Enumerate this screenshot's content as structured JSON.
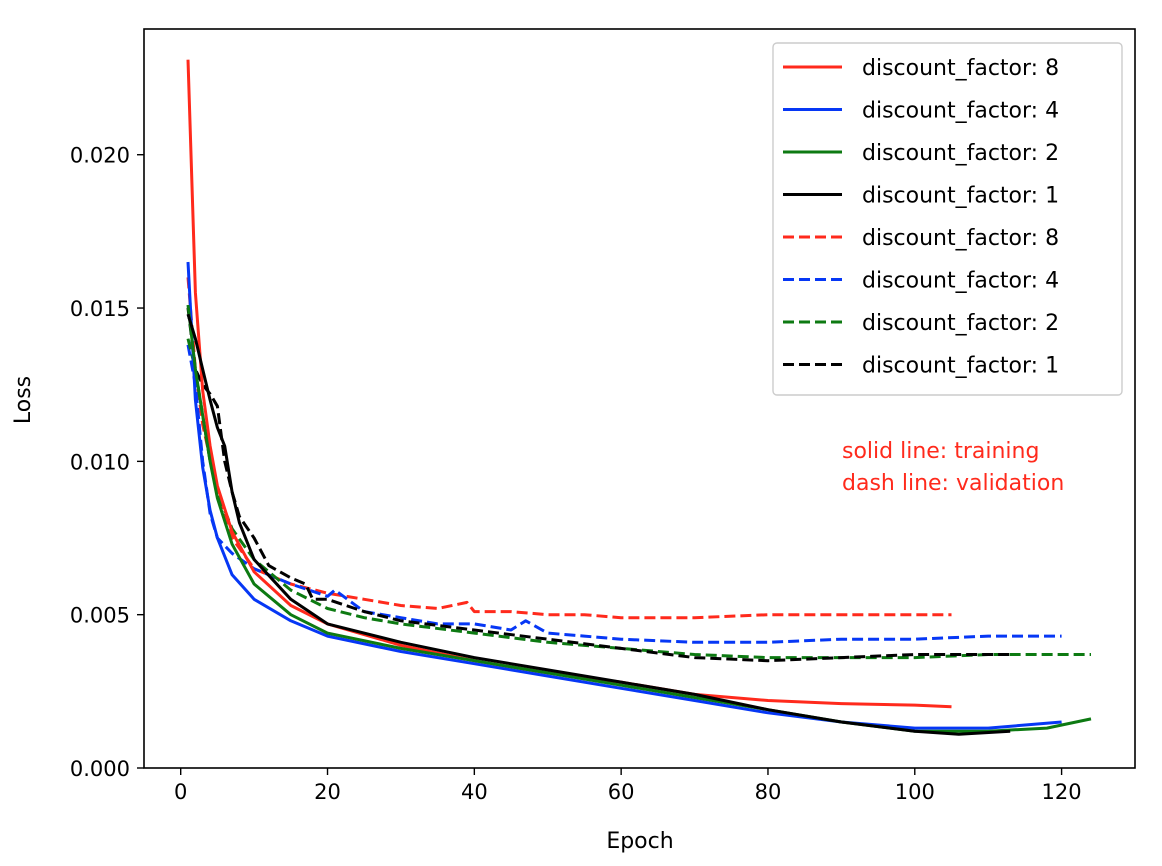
{
  "chart_data": {
    "type": "line",
    "title": "",
    "xlabel": "Epoch",
    "ylabel": "Loss",
    "xlim": [
      -5,
      130
    ],
    "ylim": [
      0,
      0.0241
    ],
    "xticks": [
      0,
      20,
      40,
      60,
      80,
      100,
      120
    ],
    "xtick_labels": [
      "0",
      "20",
      "40",
      "60",
      "80",
      "100",
      "120"
    ],
    "yticks": [
      0,
      0.005,
      0.01,
      0.015,
      0.02
    ],
    "ytick_labels": [
      "0.000",
      "0.005",
      "0.010",
      "0.015",
      "0.020"
    ],
    "grid": false,
    "legend_position": "top-right",
    "annotations": [
      {
        "text": "solid line: training",
        "color": "#ff2a1c"
      },
      {
        "text": "dash line: validation",
        "color": "#ff2a1c"
      }
    ],
    "series": [
      {
        "name": "discount_factor: 8",
        "color": "#ff2a1c",
        "style": "solid",
        "points": [
          [
            1,
            0.0231
          ],
          [
            2,
            0.0155
          ],
          [
            3,
            0.0123
          ],
          [
            4,
            0.0105
          ],
          [
            5,
            0.0092
          ],
          [
            7,
            0.0077
          ],
          [
            10,
            0.0064
          ],
          [
            15,
            0.0053
          ],
          [
            20,
            0.0047
          ],
          [
            30,
            0.004
          ],
          [
            40,
            0.0035
          ],
          [
            50,
            0.0031
          ],
          [
            60,
            0.0028
          ],
          [
            70,
            0.0024
          ],
          [
            80,
            0.0022
          ],
          [
            90,
            0.0021
          ],
          [
            100,
            0.00205
          ],
          [
            105,
            0.002
          ]
        ]
      },
      {
        "name": "discount_factor: 4",
        "color": "#0637f5",
        "style": "solid",
        "points": [
          [
            1,
            0.0165
          ],
          [
            2,
            0.012
          ],
          [
            3,
            0.0098
          ],
          [
            4,
            0.0084
          ],
          [
            5,
            0.0075
          ],
          [
            7,
            0.0063
          ],
          [
            10,
            0.0055
          ],
          [
            15,
            0.0048
          ],
          [
            20,
            0.0043
          ],
          [
            30,
            0.0038
          ],
          [
            40,
            0.0034
          ],
          [
            50,
            0.003
          ],
          [
            60,
            0.0026
          ],
          [
            70,
            0.0022
          ],
          [
            80,
            0.0018
          ],
          [
            90,
            0.0015
          ],
          [
            100,
            0.0013
          ],
          [
            110,
            0.0013
          ],
          [
            120,
            0.0015
          ]
        ]
      },
      {
        "name": "discount_factor: 2",
        "color": "#0d7a12",
        "style": "solid",
        "points": [
          [
            1,
            0.0151
          ],
          [
            2,
            0.013
          ],
          [
            3,
            0.0115
          ],
          [
            4,
            0.01
          ],
          [
            5,
            0.0088
          ],
          [
            7,
            0.0073
          ],
          [
            10,
            0.006
          ],
          [
            15,
            0.005
          ],
          [
            20,
            0.0044
          ],
          [
            30,
            0.0039
          ],
          [
            40,
            0.0035
          ],
          [
            50,
            0.0031
          ],
          [
            60,
            0.0027
          ],
          [
            70,
            0.0023
          ],
          [
            80,
            0.0019
          ],
          [
            90,
            0.0015
          ],
          [
            100,
            0.0012
          ],
          [
            110,
            0.0012
          ],
          [
            118,
            0.0013
          ],
          [
            124,
            0.0016
          ]
        ]
      },
      {
        "name": "discount_factor: 1",
        "color": "#000000",
        "style": "solid",
        "points": [
          [
            1,
            0.0148
          ],
          [
            2,
            0.014
          ],
          [
            3,
            0.013
          ],
          [
            4,
            0.012
          ],
          [
            5,
            0.0111
          ],
          [
            6,
            0.0105
          ],
          [
            7,
            0.009
          ],
          [
            8,
            0.008
          ],
          [
            10,
            0.0068
          ],
          [
            15,
            0.0055
          ],
          [
            20,
            0.0047
          ],
          [
            30,
            0.0041
          ],
          [
            40,
            0.0036
          ],
          [
            50,
            0.0032
          ],
          [
            60,
            0.0028
          ],
          [
            70,
            0.0024
          ],
          [
            80,
            0.0019
          ],
          [
            90,
            0.0015
          ],
          [
            100,
            0.0012
          ],
          [
            106,
            0.0011
          ],
          [
            113,
            0.0012
          ]
        ]
      },
      {
        "name": "discount_factor: 8",
        "color": "#ff2a1c",
        "style": "dashed",
        "points": [
          [
            1,
            0.016
          ],
          [
            2,
            0.013
          ],
          [
            3,
            0.0112
          ],
          [
            5,
            0.009
          ],
          [
            7,
            0.0075
          ],
          [
            10,
            0.0065
          ],
          [
            15,
            0.006
          ],
          [
            20,
            0.0057
          ],
          [
            25,
            0.0055
          ],
          [
            30,
            0.0053
          ],
          [
            35,
            0.0052
          ],
          [
            39,
            0.0054
          ],
          [
            40,
            0.0051
          ],
          [
            45,
            0.0051
          ],
          [
            50,
            0.005
          ],
          [
            55,
            0.005
          ],
          [
            60,
            0.0049
          ],
          [
            70,
            0.0049
          ],
          [
            80,
            0.005
          ],
          [
            90,
            0.005
          ],
          [
            100,
            0.005
          ],
          [
            105,
            0.005
          ]
        ]
      },
      {
        "name": "discount_factor: 4",
        "color": "#0637f5",
        "style": "dashed",
        "points": [
          [
            1,
            0.0138
          ],
          [
            2,
            0.0125
          ],
          [
            3,
            0.01
          ],
          [
            4,
            0.0083
          ],
          [
            5,
            0.0075
          ],
          [
            7,
            0.007
          ],
          [
            10,
            0.0065
          ],
          [
            15,
            0.006
          ],
          [
            20,
            0.0056
          ],
          [
            21,
            0.0058
          ],
          [
            25,
            0.0051
          ],
          [
            30,
            0.0049
          ],
          [
            35,
            0.0047
          ],
          [
            40,
            0.0047
          ],
          [
            45,
            0.0045
          ],
          [
            47,
            0.0048
          ],
          [
            50,
            0.0044
          ],
          [
            55,
            0.0043
          ],
          [
            60,
            0.0042
          ],
          [
            70,
            0.0041
          ],
          [
            80,
            0.0041
          ],
          [
            90,
            0.0042
          ],
          [
            100,
            0.0042
          ],
          [
            110,
            0.0043
          ],
          [
            120,
            0.0043
          ]
        ]
      },
      {
        "name": "discount_factor: 2",
        "color": "#0d7a12",
        "style": "dashed",
        "points": [
          [
            1,
            0.014
          ],
          [
            2,
            0.013
          ],
          [
            3,
            0.0115
          ],
          [
            4,
            0.01
          ],
          [
            5,
            0.009
          ],
          [
            7,
            0.0078
          ],
          [
            10,
            0.0068
          ],
          [
            15,
            0.0058
          ],
          [
            20,
            0.0052
          ],
          [
            25,
            0.0049
          ],
          [
            30,
            0.0047
          ],
          [
            40,
            0.0044
          ],
          [
            50,
            0.0041
          ],
          [
            60,
            0.0039
          ],
          [
            70,
            0.0037
          ],
          [
            80,
            0.0036
          ],
          [
            90,
            0.0036
          ],
          [
            100,
            0.0036
          ],
          [
            110,
            0.0037
          ],
          [
            120,
            0.0037
          ],
          [
            124,
            0.0037
          ]
        ]
      },
      {
        "name": "discount_factor: 1",
        "color": "#000000",
        "style": "dashed",
        "points": [
          [
            1,
            0.015
          ],
          [
            2,
            0.013
          ],
          [
            3,
            0.0125
          ],
          [
            4,
            0.0122
          ],
          [
            5,
            0.0118
          ],
          [
            6,
            0.01
          ],
          [
            7,
            0.009
          ],
          [
            8,
            0.0082
          ],
          [
            10,
            0.0075
          ],
          [
            12,
            0.0066
          ],
          [
            15,
            0.0062
          ],
          [
            17,
            0.006
          ],
          [
            18,
            0.0055
          ],
          [
            20,
            0.0055
          ],
          [
            25,
            0.0051
          ],
          [
            30,
            0.0048
          ],
          [
            40,
            0.0045
          ],
          [
            50,
            0.0042
          ],
          [
            60,
            0.0039
          ],
          [
            70,
            0.0036
          ],
          [
            80,
            0.0035
          ],
          [
            90,
            0.0036
          ],
          [
            100,
            0.0037
          ],
          [
            110,
            0.0037
          ],
          [
            113,
            0.0037
          ]
        ]
      }
    ]
  }
}
